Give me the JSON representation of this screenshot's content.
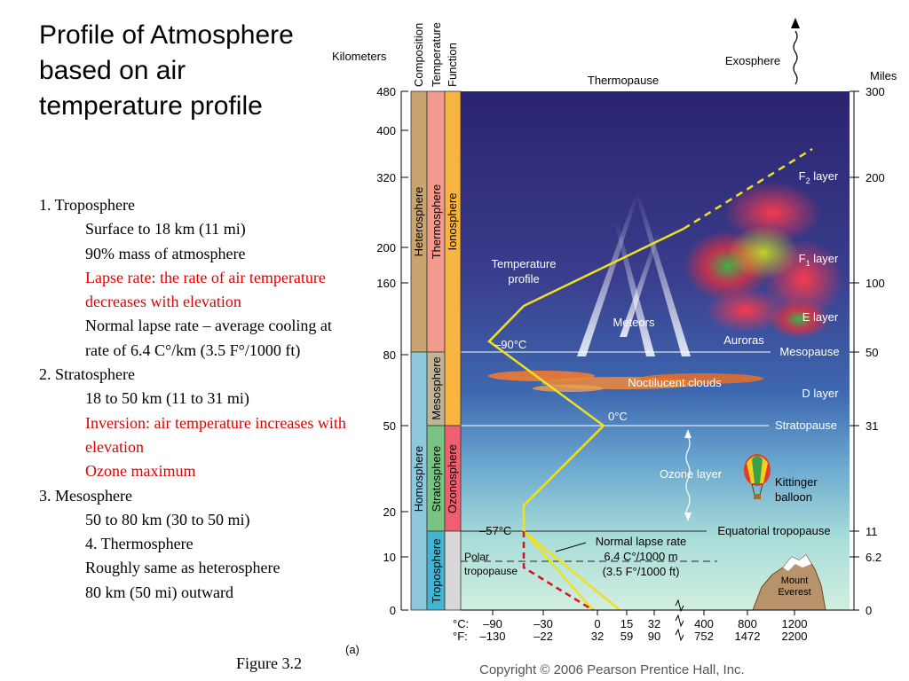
{
  "title": "Profile of Atmosphere based on air temperature profile",
  "notes": [
    {
      "text": "1. Troposphere",
      "indent": false,
      "red": false
    },
    {
      "text": "Surface to 18 km (11 mi)",
      "indent": true,
      "red": false
    },
    {
      "text": "90% mass of atmosphere",
      "indent": true,
      "red": false
    },
    {
      "text": "Lapse rate: the rate of air temperature decreases with elevation",
      "indent": true,
      "red": true
    },
    {
      "text": "Normal lapse rate – average cooling at rate of 6.4 C°/km (3.5 F°/1000 ft)",
      "indent": true,
      "red": false
    },
    {
      "text": "2. Stratosphere",
      "indent": false,
      "red": false
    },
    {
      "text": "18 to 50 km (11 to 31 mi)",
      "indent": true,
      "red": false
    },
    {
      "text": "Inversion: air temperature increases with elevation",
      "indent": true,
      "red": true
    },
    {
      "text": "Ozone maximum",
      "indent": true,
      "red": true
    },
    {
      "text": "3. Mesosphere",
      "indent": false,
      "red": false
    },
    {
      "text": "50 to 80 km (30 to 50 mi)",
      "indent": true,
      "red": false
    },
    {
      "text": "4. Thermosphere",
      "indent": true,
      "red": false
    },
    {
      "text": "Roughly same as heterosphere",
      "indent": true,
      "red": false
    },
    {
      "text": "80 km (50 mi) outward",
      "indent": true,
      "red": false
    }
  ],
  "figure_caption": "Figure  3.2",
  "diagram": {
    "panel_label": "(a)",
    "copyright": "Copyright © 2006 Pearson Prentice Hall, Inc.",
    "axis_left_label": "Kilometers",
    "axis_right_label": "Miles",
    "km_ticks": [
      "480",
      "400",
      "320",
      "200",
      "160",
      "80",
      "50",
      "20",
      "10",
      "0"
    ],
    "mile_ticks": [
      "300",
      "200",
      "100",
      "50",
      "31",
      "11",
      "6.2",
      "0"
    ],
    "column_headers": [
      "Composition",
      "Temperature",
      "Function"
    ],
    "composition": [
      "Heterosphere",
      "Homosphere"
    ],
    "temperature_layers": [
      "Thermosphere",
      "Mesosphere",
      "Stratosphere",
      "Troposphere"
    ],
    "function_layers": [
      "Ionosphere",
      "Ozonosphere"
    ],
    "top_labels": {
      "thermopause": "Thermopause",
      "exosphere": "Exosphere"
    },
    "boundaries": {
      "mesopause": "Mesopause",
      "stratopause": "Stratopause",
      "equatorial_tropopause": "Equatorial tropopause"
    },
    "ion_layers": {
      "f2": "F",
      "f2_sub": "2",
      "f1": "F",
      "f1_sub": "1",
      "layer_word": " layer",
      "e": "E layer",
      "d": "D layer"
    },
    "features": {
      "meteors": "Meteors",
      "auroras": "Auroras",
      "noctilucent": "Noctilucent clouds",
      "ozone_layer": "Ozone layer",
      "balloon_1": "Kittinger",
      "balloon_2": "balloon",
      "everest_1": "Mount",
      "everest_2": "Everest",
      "polar_1": "Polar",
      "polar_2": "tropopause"
    },
    "temp_profile_label_1": "Temperature",
    "temp_profile_label_2": "profile",
    "temp_points": {
      "minus90": "–90°C",
      "zero": "0°C",
      "minus57": "–57°C"
    },
    "lapse_rate_labels": [
      "Normal lapse rate",
      "6.4 C°/1000 m",
      "(3.5 F°/1000 ft)"
    ],
    "celsius_label": "°C:",
    "fahrenheit_label": "°F:",
    "celsius_ticks": [
      "–90",
      "–30",
      "0",
      "15",
      "32",
      "400",
      "800",
      "1200"
    ],
    "fahrenheit_ticks": [
      "–130",
      "–22",
      "32",
      "59",
      "90",
      "752",
      "1472",
      "2200"
    ],
    "colors": {
      "sky_top": "#2a2470",
      "sky_bottom": "#bfe8d8",
      "profile_line": "#f0e020",
      "polar_line": "#e01020",
      "heterosphere": "#c8a470",
      "homosphere": "#8ec8de",
      "thermosphere": "#f29a8c",
      "mesosphere": "#c2b496",
      "stratosphere": "#78c482",
      "troposphere": "#46b4d0",
      "ionosphere": "#f8b440",
      "ozonosphere": "#ee6070"
    }
  }
}
